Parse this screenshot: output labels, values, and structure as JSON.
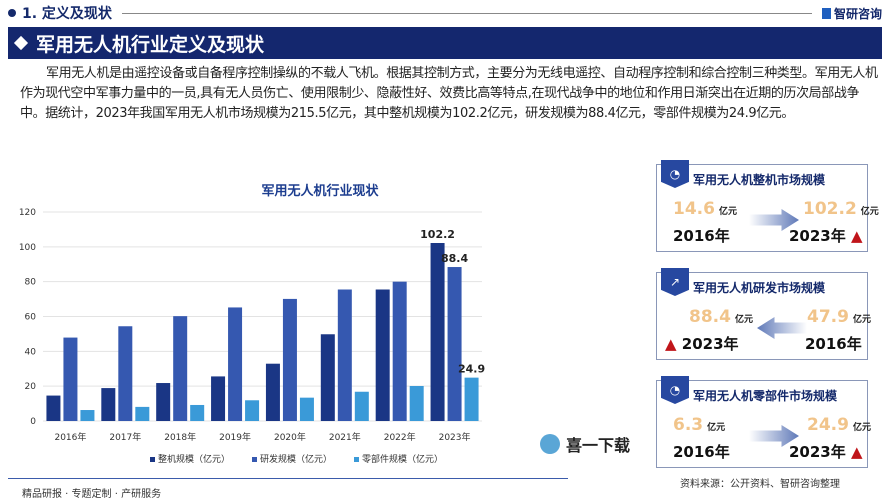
{
  "header": {
    "section": "1. 定义及现状",
    "brand": "智研咨询",
    "banner": "军用无人机行业定义及现状"
  },
  "paragraph": "军用无人机是由遥控设备或自备程序控制操纵的不载人飞机。根据其控制方式，主要分为无线电遥控、自动程序控制和综合控制三种类型。军用无人机作为现代空中军事力量中的一员,具有无人员伤亡、使用限制少、隐蔽性好、效费比高等特点,在现代战争中的地位和作用日渐突出在近期的历次局部战争中。据统计，2023年我国军用无人机市场规模为215.5亿元，其中整机规模为102.2亿元，研发规模为88.4亿元，零部件规模为24.9亿元。",
  "chart_data": {
    "type": "bar",
    "title": "军用无人机行业现状",
    "categories": [
      "2016年",
      "2017年",
      "2018年",
      "2019年",
      "2020年",
      "2021年",
      "2022年",
      "2023年"
    ],
    "series": [
      {
        "name": "整机规模（亿元）",
        "values": [
          14.6,
          18.9,
          21.8,
          25.6,
          32.9,
          49.8,
          75.5,
          102.2
        ],
        "color": "#1a3685"
      },
      {
        "name": "研发规模（亿元）",
        "values": [
          47.9,
          54.4,
          60.2,
          65.2,
          70.1,
          75.5,
          80.0,
          88.4
        ],
        "color": "#3558b0"
      },
      {
        "name": "零部件规模（亿元）",
        "values": [
          6.3,
          8.1,
          9.2,
          11.9,
          13.4,
          16.8,
          20.1,
          24.9
        ],
        "color": "#3a9ad8"
      }
    ],
    "data_labels": [
      "102.2",
      "88.4",
      "24.9"
    ],
    "yticks": [
      "0",
      "20",
      "40",
      "60",
      "80",
      "100",
      "120"
    ],
    "ylim": [
      0,
      120
    ],
    "grid": true,
    "legend": "bottom"
  },
  "footer": "精品研报 · 专题定制 · 产研服务",
  "cards": [
    {
      "title": "军用无人机整机市场规模",
      "from_val": "14.6",
      "from_year": "2016年",
      "to_val": "102.2",
      "to_year": "2023年",
      "unit": "亿元"
    },
    {
      "title": "军用无人机研发市场规模",
      "from_val": "88.4",
      "from_year": "2023年",
      "to_val": "47.9",
      "to_year": "2016年",
      "unit": "亿元"
    },
    {
      "title": "军用无人机零部件市场规模",
      "from_val": "6.3",
      "from_year": "2016年",
      "to_val": "24.9",
      "to_year": "2023年",
      "unit": "亿元"
    }
  ],
  "source": "资料来源：公开资料、智研咨询整理",
  "watermark": "喜一下载"
}
